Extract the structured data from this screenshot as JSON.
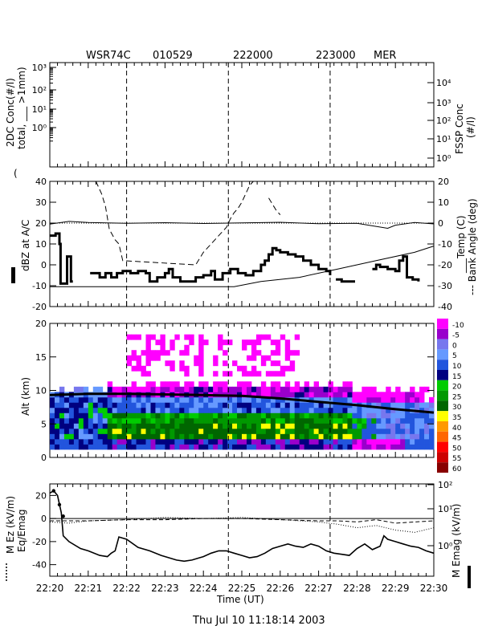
{
  "header": {
    "radar": "WSR74C",
    "date_code": "010529",
    "time_start": "222000",
    "time_end": "223000",
    "site": "MER"
  },
  "footer": {
    "timestamp": "Thu Jul 10 11:18:14 2003"
  },
  "xaxis": {
    "label": "Time (UT)",
    "ticks": [
      "22:20",
      "22:21",
      "22:22",
      "22:23",
      "22:24",
      "22:25",
      "22:26",
      "22:27",
      "22:28",
      "22:29",
      "22:30"
    ],
    "range_min": [
      0,
      10
    ]
  },
  "markers_min": [
    2.0,
    4.65,
    7.3
  ],
  "colorbar": {
    "labels": [
      "-10",
      "-5",
      "0",
      "5",
      "10",
      "15",
      "20",
      "25",
      "30",
      "35",
      "40",
      "45",
      "50",
      "55",
      "60"
    ],
    "colors": [
      "#ff00ff",
      "#9900cc",
      "#7777ee",
      "#6699ff",
      "#2255dd",
      "#000080",
      "#00cc00",
      "#009900",
      "#006600",
      "#ffff00",
      "#ff9900",
      "#ff6600",
      "#ff0000",
      "#cc0000",
      "#880000"
    ]
  },
  "chart_data": [
    {
      "type": "line",
      "panel": "particle-concentration",
      "ylabel_left": [
        "2DC Conc(#/l)",
        "total, ___ >1mm)"
      ],
      "ylabel_right": [
        "FSSP Conc",
        "(#/l)"
      ],
      "y_left_ticks": [
        "10³",
        "10²",
        "10¹",
        "10⁰"
      ],
      "y_right_ticks": [
        "10⁴",
        "10³",
        "10²",
        "10¹",
        "10⁰"
      ],
      "series": []
    },
    {
      "type": "line",
      "panel": "reflectivity-temperature",
      "ylabel_left": "dBZ at A/C",
      "ylabel_right": [
        "___Temp (C)",
        "--- Bank Angle (deg)"
      ],
      "ylim_left": [
        -20,
        40
      ],
      "ylim_right": [
        -40,
        20
      ],
      "y_left_ticks": [
        "40",
        "30",
        "20",
        "10",
        "0",
        "-10",
        "-20"
      ],
      "y_right_ticks": [
        "20",
        "10",
        "0",
        "-10",
        "-20",
        "-30",
        "-40"
      ],
      "series": [
        {
          "name": "dBZ",
          "axis": "left",
          "style": "thick",
          "points": [
            [
              0,
              14
            ],
            [
              0.15,
              15
            ],
            [
              0.25,
              10
            ],
            [
              0.28,
              -9
            ],
            [
              0.35,
              -9
            ],
            [
              0.4,
              -9
            ],
            [
              0.45,
              4
            ],
            [
              0.5,
              4
            ],
            [
              0.55,
              -8
            ],
            [
              0.6,
              -8
            ],
            [
              1.0,
              null
            ],
            [
              1.05,
              -4
            ],
            [
              1.2,
              -4
            ],
            [
              1.3,
              -6
            ],
            [
              1.45,
              -4
            ],
            [
              1.6,
              -6
            ],
            [
              1.75,
              -4
            ],
            [
              1.9,
              -3
            ],
            [
              2.1,
              -4
            ],
            [
              2.3,
              -3
            ],
            [
              2.5,
              -4
            ],
            [
              2.6,
              -8
            ],
            [
              2.8,
              -6
            ],
            [
              3.0,
              -4
            ],
            [
              3.1,
              -2
            ],
            [
              3.2,
              -6
            ],
            [
              3.4,
              -8
            ],
            [
              3.6,
              -8
            ],
            [
              3.8,
              -6
            ],
            [
              4.0,
              -5
            ],
            [
              4.2,
              -3
            ],
            [
              4.3,
              -7
            ],
            [
              4.5,
              -4
            ],
            [
              4.7,
              -2
            ],
            [
              4.9,
              -4
            ],
            [
              5.1,
              -5
            ],
            [
              5.3,
              -3
            ],
            [
              5.5,
              0
            ],
            [
              5.6,
              2
            ],
            [
              5.7,
              5
            ],
            [
              5.8,
              8
            ],
            [
              5.9,
              7
            ],
            [
              6.0,
              6
            ],
            [
              6.2,
              5
            ],
            [
              6.4,
              4
            ],
            [
              6.6,
              2
            ],
            [
              6.8,
              0
            ],
            [
              7.0,
              -2
            ],
            [
              7.2,
              -3
            ],
            [
              7.3,
              -5
            ],
            [
              7.4,
              null
            ],
            [
              7.45,
              -7
            ],
            [
              7.6,
              -8
            ],
            [
              7.8,
              -8
            ],
            [
              7.95,
              -8
            ],
            [
              8.0,
              null
            ],
            [
              8.4,
              -2
            ],
            [
              8.5,
              0
            ],
            [
              8.6,
              -1
            ],
            [
              8.8,
              -2
            ],
            [
              9.0,
              -3
            ],
            [
              9.1,
              2
            ],
            [
              9.2,
              4
            ],
            [
              9.3,
              -6
            ],
            [
              9.45,
              -7
            ],
            [
              9.6,
              -8
            ]
          ]
        },
        {
          "name": "Temp",
          "axis": "right",
          "style": "solid",
          "points": [
            [
              0,
              -30.5
            ],
            [
              1,
              -30.5
            ],
            [
              2,
              -30.5
            ],
            [
              3,
              -30.5
            ],
            [
              4,
              -30.5
            ],
            [
              4.8,
              -30.5
            ],
            [
              5.5,
              -28
            ],
            [
              6.5,
              -26
            ],
            [
              7.5,
              -22
            ],
            [
              8.5,
              -18
            ],
            [
              9.5,
              -14
            ],
            [
              10,
              -11
            ]
          ]
        },
        {
          "name": "Bank Angle",
          "axis": "right",
          "style": "dashed",
          "points": [
            [
              1.2,
              20
            ],
            [
              1.35,
              14
            ],
            [
              1.45,
              8
            ],
            [
              1.55,
              -3
            ],
            [
              1.7,
              -8
            ],
            [
              1.8,
              -10
            ],
            [
              1.9,
              -18
            ],
            [
              3.8,
              -20
            ],
            [
              4.0,
              -14
            ],
            [
              4.2,
              -10
            ],
            [
              4.4,
              -6
            ],
            [
              4.6,
              -2
            ],
            [
              4.7,
              2
            ],
            [
              4.8,
              5
            ],
            [
              4.9,
              7
            ],
            [
              5.0,
              10
            ],
            [
              5.1,
              14
            ],
            [
              5.2,
              18
            ],
            [
              5.3,
              20
            ],
            [
              3.2,
              null
            ],
            [
              5.7,
              12
            ],
            [
              5.9,
              6
            ],
            [
              6.0,
              4
            ]
          ]
        },
        {
          "name": "zero-ref",
          "axis": "left",
          "style": "dotted",
          "points": [
            [
              0,
              20
            ],
            [
              10,
              20
            ]
          ]
        },
        {
          "name": "temp-noise",
          "axis": "left",
          "style": "thin",
          "points": [
            [
              0,
              19.5
            ],
            [
              0.5,
              20.8
            ],
            [
              1.0,
              20.3
            ],
            [
              2.0,
              19.9
            ],
            [
              3.0,
              20.2
            ],
            [
              4.0,
              19.8
            ],
            [
              5.0,
              20.1
            ],
            [
              6.0,
              20.4
            ],
            [
              7.0,
              19.7
            ],
            [
              8.0,
              19.9
            ],
            [
              8.8,
              17.5
            ],
            [
              9.0,
              19
            ],
            [
              9.5,
              20.3
            ],
            [
              10,
              19.6
            ]
          ]
        }
      ]
    },
    {
      "type": "heatmap",
      "panel": "radar-reflectivity-altitude",
      "ylabel": "Alt (km)",
      "ylim": [
        0,
        20
      ],
      "y_ticks": [
        "20",
        "15",
        "10",
        "5",
        "0"
      ],
      "note": "cells colored by dBZ bin; flight altitude line overlaid",
      "flight_altitude_km": [
        [
          0,
          9.3
        ],
        [
          1,
          9.5
        ],
        [
          2,
          9.5
        ],
        [
          3,
          9.4
        ],
        [
          4,
          9.3
        ],
        [
          5,
          9.2
        ],
        [
          6,
          8.8
        ],
        [
          7,
          8.3
        ],
        [
          8,
          7.8
        ],
        [
          9,
          7.2
        ],
        [
          10,
          6.7
        ]
      ]
    },
    {
      "type": "line",
      "panel": "electric-field",
      "ylabel_left": [
        "M Ez (kV/m)",
        "Eq/Emag"
      ],
      "ylabel_right": "M Emag (kV/m)",
      "ylim_left": [
        -50,
        30
      ],
      "y_left_ticks": [
        "20",
        "0",
        "-20",
        "-40"
      ],
      "y_right_ticks": [
        "10²",
        "10¹",
        "10⁰"
      ],
      "series": [
        {
          "name": "Ez",
          "axis": "left",
          "style": "solid",
          "points": [
            [
              0,
              22
            ],
            [
              0.1,
              24
            ],
            [
              0.2,
              20
            ],
            [
              0.3,
              5
            ],
            [
              0.35,
              -15
            ],
            [
              0.5,
              -20
            ],
            [
              0.8,
              -26
            ],
            [
              1.0,
              -28
            ],
            [
              1.3,
              -32
            ],
            [
              1.5,
              -33
            ],
            [
              1.6,
              -30
            ],
            [
              1.7,
              -28
            ],
            [
              1.8,
              -16
            ],
            [
              2.0,
              -18
            ],
            [
              2.3,
              -25
            ],
            [
              2.6,
              -28
            ],
            [
              2.9,
              -32
            ],
            [
              3.1,
              -34
            ],
            [
              3.3,
              -36
            ],
            [
              3.5,
              -37
            ],
            [
              3.7,
              -36
            ],
            [
              3.9,
              -34
            ],
            [
              4.0,
              -33
            ],
            [
              4.2,
              -30
            ],
            [
              4.4,
              -28
            ],
            [
              4.6,
              -28
            ],
            [
              4.8,
              -30
            ],
            [
              5.0,
              -32
            ],
            [
              5.2,
              -34
            ],
            [
              5.4,
              -33
            ],
            [
              5.6,
              -30
            ],
            [
              5.8,
              -26
            ],
            [
              6.0,
              -24
            ],
            [
              6.2,
              -22
            ],
            [
              6.4,
              -24
            ],
            [
              6.6,
              -25
            ],
            [
              6.8,
              -22
            ],
            [
              7.0,
              -24
            ],
            [
              7.2,
              -28
            ],
            [
              7.4,
              -30
            ],
            [
              7.6,
              -31
            ],
            [
              7.8,
              -32
            ],
            [
              8.0,
              -26
            ],
            [
              8.2,
              -22
            ],
            [
              8.4,
              -27
            ],
            [
              8.6,
              -24
            ],
            [
              8.7,
              -15
            ],
            [
              8.8,
              -18
            ],
            [
              9.0,
              -20
            ],
            [
              9.2,
              -22
            ],
            [
              9.4,
              -24
            ],
            [
              9.6,
              -25
            ],
            [
              9.8,
              -28
            ],
            [
              10,
              -30
            ]
          ]
        },
        {
          "name": "Eq/Emag",
          "axis": "left",
          "style": "dotted",
          "points": [
            [
              0,
              -3
            ],
            [
              0.5,
              -4
            ],
            [
              1.0,
              -2
            ],
            [
              2.0,
              -1
            ],
            [
              3.0,
              1
            ],
            [
              4.0,
              0
            ],
            [
              5.0,
              1
            ],
            [
              6.0,
              -1
            ],
            [
              7.0,
              -3
            ],
            [
              7.5,
              -5
            ],
            [
              8.0,
              -8
            ],
            [
              8.5,
              -6
            ],
            [
              9.0,
              -10
            ],
            [
              9.5,
              -12
            ],
            [
              10,
              -8
            ]
          ]
        },
        {
          "name": "zero",
          "axis": "left",
          "style": "solid-thin",
          "points": [
            [
              0,
              0
            ],
            [
              10,
              0
            ]
          ]
        },
        {
          "name": "dashed-ref",
          "axis": "left",
          "style": "dashed",
          "points": [
            [
              0,
              -2
            ],
            [
              1,
              -2
            ],
            [
              2,
              -1
            ],
            [
              3,
              -1
            ],
            [
              4,
              0
            ],
            [
              5,
              0
            ],
            [
              6,
              -1
            ],
            [
              7,
              -2
            ],
            [
              7.5,
              -2
            ],
            [
              8.0,
              -3
            ],
            [
              8.5,
              -1
            ],
            [
              9.0,
              -4
            ],
            [
              9.5,
              -3
            ],
            [
              10,
              -2
            ]
          ]
        }
      ]
    }
  ]
}
